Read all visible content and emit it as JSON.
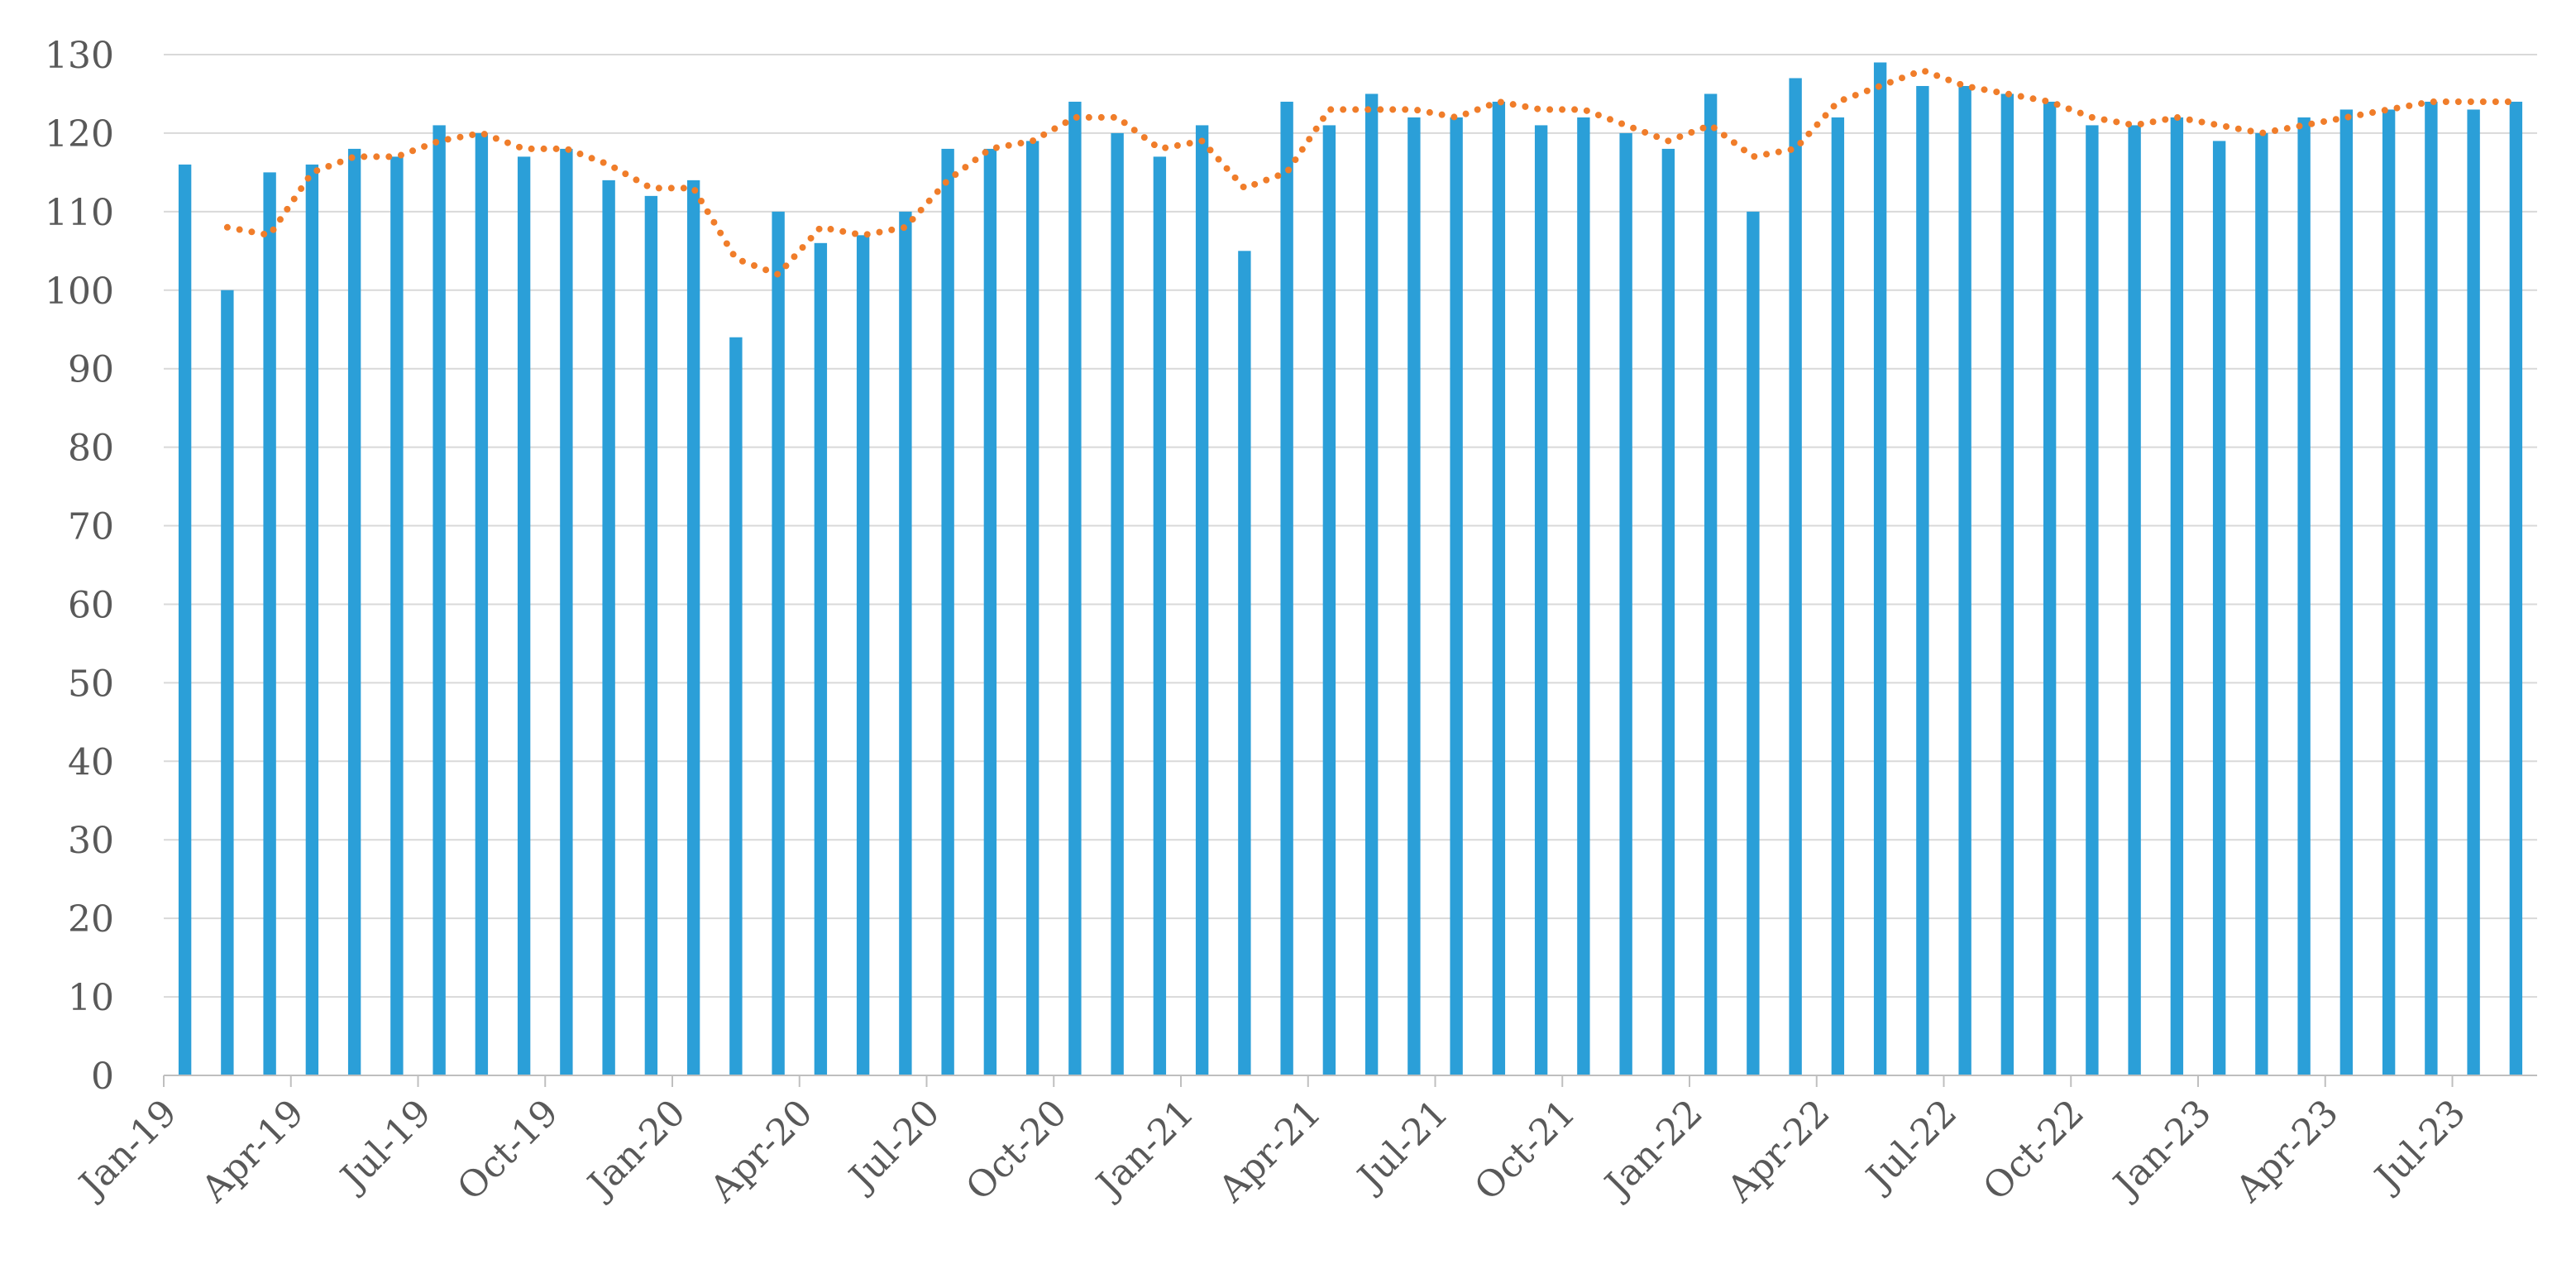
{
  "chart_data": {
    "type": "bar",
    "title": "",
    "xlabel": "",
    "ylabel": "",
    "ylim": [
      0,
      130
    ],
    "yticks": [
      0,
      10,
      20,
      30,
      40,
      50,
      60,
      70,
      80,
      90,
      100,
      110,
      120,
      130
    ],
    "grid": true,
    "legend": "none",
    "x_tick_labels": [
      "Jan-19",
      "Apr-19",
      "Jul-19",
      "Oct-19",
      "Jan-20",
      "Apr-20",
      "Jul-20",
      "Oct-20",
      "Jan-21",
      "Apr-21",
      "Jul-21",
      "Oct-21",
      "Jan-22",
      "Apr-22",
      "Jul-22",
      "Oct-22",
      "Jan-23",
      "Apr-23",
      "Jul-23"
    ],
    "categories": [
      "Jan-19",
      "Feb-19",
      "Mar-19",
      "Apr-19",
      "May-19",
      "Jun-19",
      "Jul-19",
      "Aug-19",
      "Sep-19",
      "Oct-19",
      "Nov-19",
      "Dec-19",
      "Jan-20",
      "Feb-20",
      "Mar-20",
      "Apr-20",
      "May-20",
      "Jun-20",
      "Jul-20",
      "Aug-20",
      "Sep-20",
      "Oct-20",
      "Nov-20",
      "Dec-20",
      "Jan-21",
      "Feb-21",
      "Mar-21",
      "Apr-21",
      "May-21",
      "Jun-21",
      "Jul-21",
      "Aug-21",
      "Sep-21",
      "Oct-21",
      "Nov-21",
      "Dec-21",
      "Jan-22",
      "Feb-22",
      "Mar-22",
      "Apr-22",
      "May-22",
      "Jun-22",
      "Jul-22",
      "Aug-22",
      "Sep-22",
      "Oct-22",
      "Nov-22",
      "Dec-22",
      "Jan-23",
      "Feb-23",
      "Mar-23",
      "Apr-23",
      "May-23",
      "Jun-23",
      "Jul-23",
      "Aug-23"
    ],
    "series": [
      {
        "type": "bar",
        "color": "#2B9FD8",
        "values": [
          116,
          100,
          115,
          116,
          118,
          117,
          121,
          120,
          117,
          118,
          114,
          112,
          114,
          94,
          110,
          106,
          107,
          110,
          118,
          118,
          119,
          124,
          120,
          117,
          121,
          105,
          124,
          121,
          125,
          122,
          122,
          124,
          121,
          122,
          120,
          118,
          125,
          110,
          127,
          122,
          129,
          126,
          126,
          125,
          124,
          121,
          121,
          122,
          119,
          120,
          122,
          123,
          123,
          124,
          123,
          124
        ]
      },
      {
        "type": "line",
        "style": "dotted",
        "color": "#F07D2A",
        "values": [
          null,
          108,
          107,
          115,
          117,
          117,
          119,
          120,
          118,
          118,
          116,
          113,
          113,
          104,
          102,
          108,
          107,
          108,
          114,
          118,
          119,
          122,
          122,
          118,
          119,
          113,
          115,
          123,
          123,
          123,
          122,
          124,
          123,
          123,
          121,
          119,
          121,
          117,
          118,
          124,
          126,
          128,
          126,
          125,
          124,
          122,
          121,
          122,
          121,
          120,
          121,
          122,
          123,
          124,
          124,
          124
        ]
      }
    ]
  }
}
